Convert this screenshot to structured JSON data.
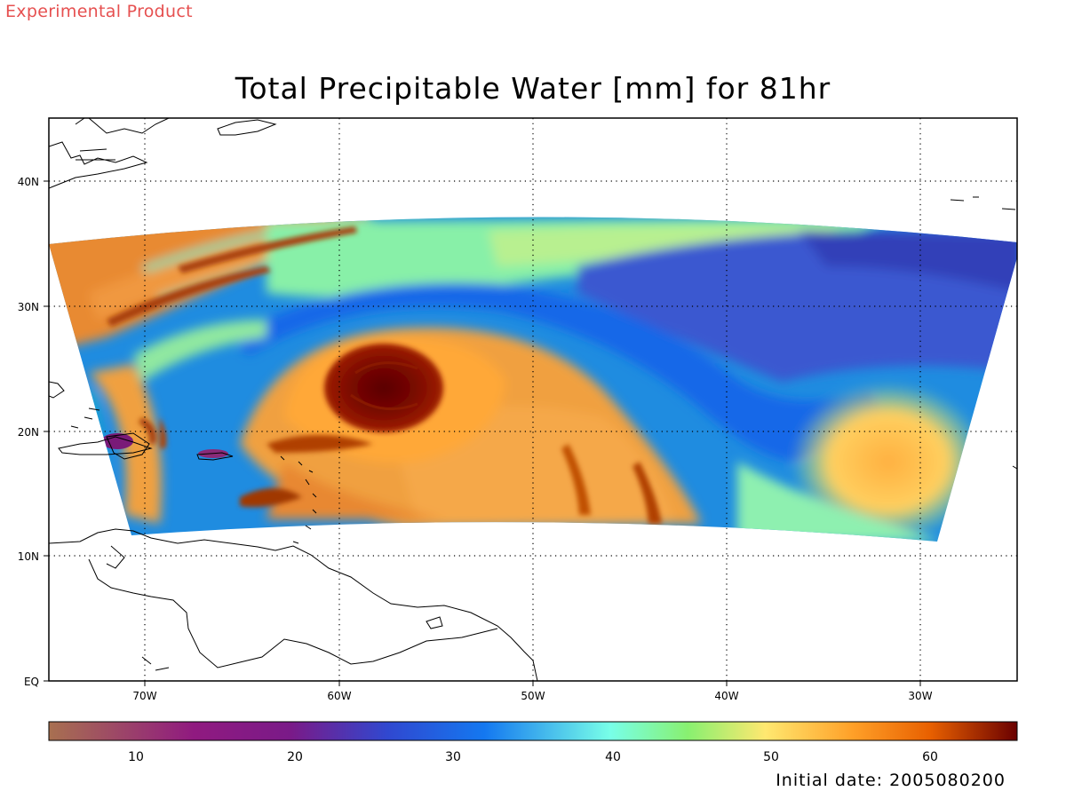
{
  "header": {
    "product_stamp": "Experimental Product",
    "title": "Total Precipitable Water [mm] for 81hr"
  },
  "footer": {
    "initial_date": "Initial date: 2005080200"
  },
  "map": {
    "lon_range": [
      -75,
      -25
    ],
    "lat_range": [
      0,
      45
    ],
    "lon_ticks": [
      {
        "lon": -70,
        "label": "70W"
      },
      {
        "lon": -60,
        "label": "60W"
      },
      {
        "lon": -50,
        "label": "50W"
      },
      {
        "lon": -40,
        "label": "40W"
      },
      {
        "lon": -30,
        "label": "30W"
      }
    ],
    "lat_ticks": [
      {
        "lat": 0,
        "label": "EQ"
      },
      {
        "lat": 10,
        "label": "10N"
      },
      {
        "lat": 20,
        "label": "20N"
      },
      {
        "lat": 30,
        "label": "30N"
      },
      {
        "lat": 40,
        "label": "40N"
      }
    ],
    "grid": "dotted"
  },
  "colorbar": {
    "range": [
      5,
      65
    ],
    "ticks": [
      10,
      20,
      30,
      40,
      50,
      60
    ],
    "tick_labels": [
      "10",
      "20",
      "30",
      "40",
      "50",
      "60"
    ],
    "colors": [
      "#a87050",
      "#7a1a88",
      "#3048d0",
      "#1478f0",
      "#78ffe8",
      "#88f070",
      "#ffe870",
      "#ffa028",
      "#e86000",
      "#6a0000"
    ]
  }
}
